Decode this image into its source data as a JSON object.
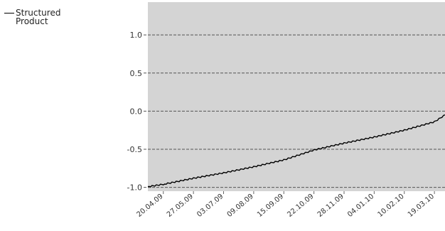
{
  "chart_data": {
    "type": "line",
    "series": [
      {
        "name": "Structured Product",
        "color": "#000000",
        "values": [
          [
            "2009-04-01",
            -0.99
          ],
          [
            "2009-04-20",
            -0.96
          ],
          [
            "2009-05-27",
            -0.88
          ],
          [
            "2009-07-03",
            -0.81
          ],
          [
            "2009-08-09",
            -0.73
          ],
          [
            "2009-09-15",
            -0.64
          ],
          [
            "2009-10-22",
            -0.51
          ],
          [
            "2009-11-28",
            -0.42
          ],
          [
            "2010-01-04",
            -0.34
          ],
          [
            "2010-02-10",
            -0.25
          ],
          [
            "2010-03-19",
            -0.14
          ],
          [
            "2010-04-01",
            -0.05
          ]
        ]
      }
    ],
    "x_ticks": [
      "20.04.09",
      "27.05.09",
      "03.07.09",
      "09.08.09",
      "15.09.09",
      "22.10.09",
      "28.11.09",
      "04.01.10",
      "10.02.10",
      "19.03.10"
    ],
    "y_ticks": [
      "1.0",
      "0.5",
      "0.0",
      "-0.5",
      "-1.0"
    ],
    "ylim": [
      -1.05,
      1.43
    ],
    "xlim": [
      "2009-04-01",
      "2010-04-01"
    ],
    "grid": "dashed-horizontal",
    "background": "#d4d4d4",
    "legend_position": "top-left"
  }
}
